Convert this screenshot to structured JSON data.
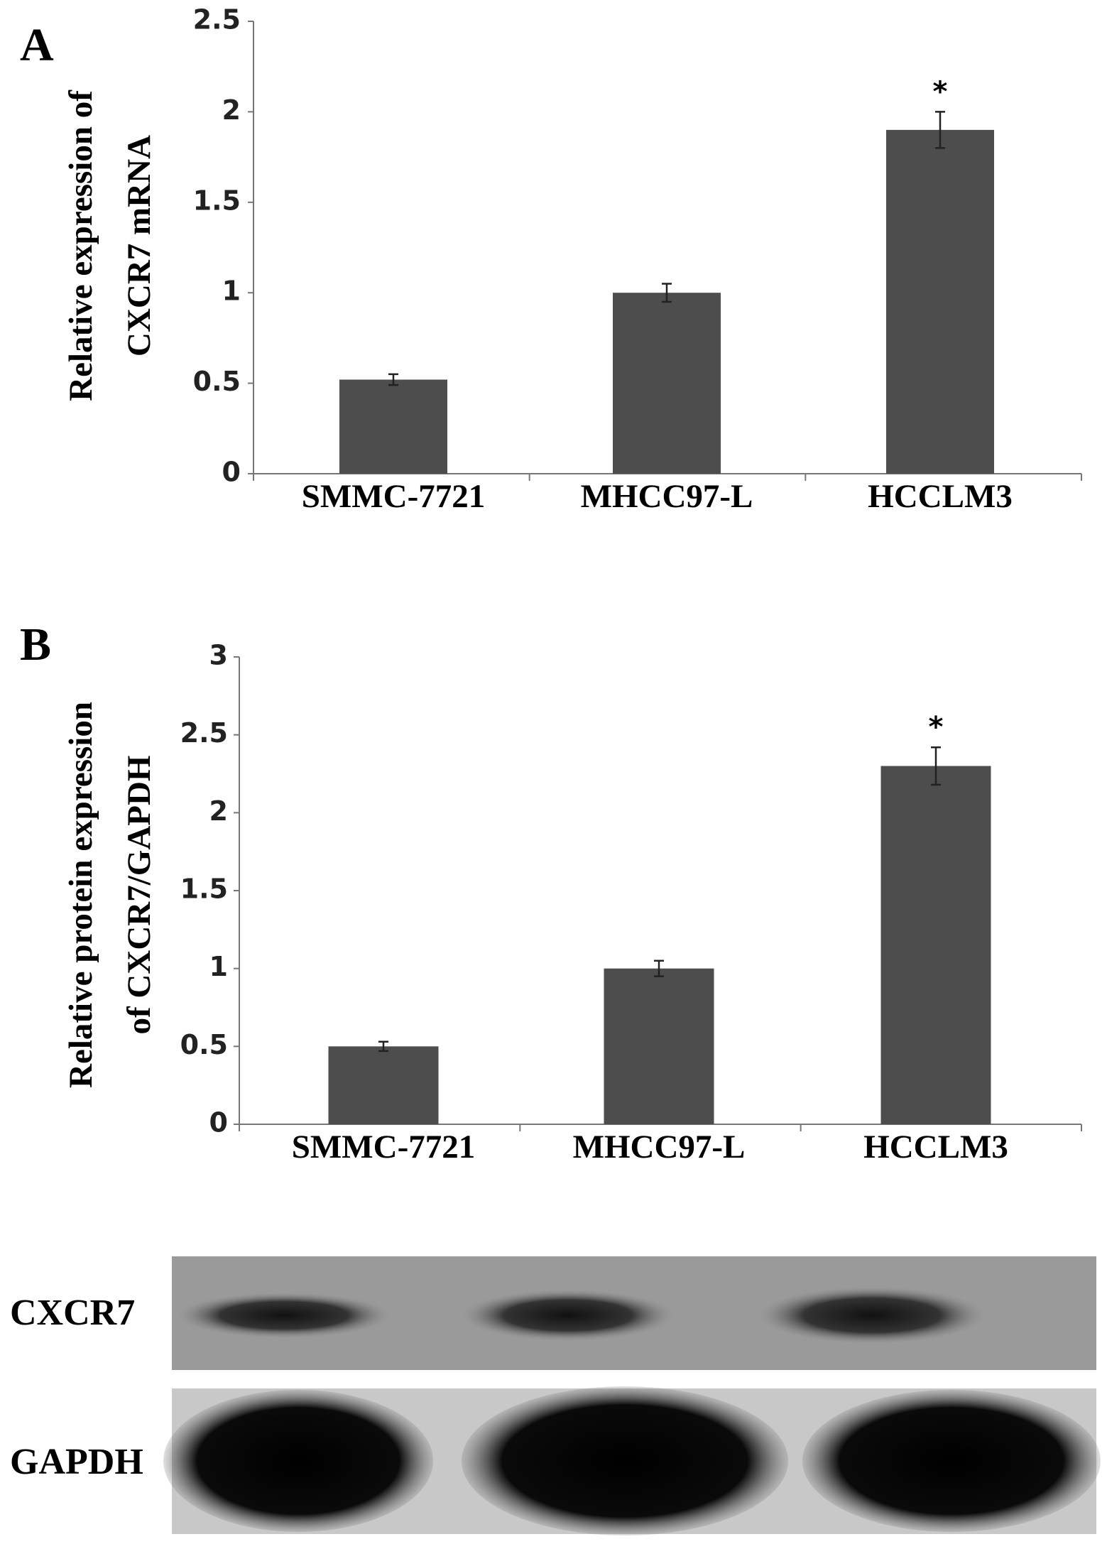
{
  "chart_data": [
    {
      "type": "bar",
      "panel": "A",
      "ylabel": [
        "Relative expression of",
        "CXCR7 mRNA"
      ],
      "categories": [
        "SMMC-7721",
        "MHCC97-L",
        "HCCLM3"
      ],
      "values": [
        0.52,
        1.0,
        1.9
      ],
      "errors": [
        0.03,
        0.05,
        0.1
      ],
      "significance_labels": [
        null,
        null,
        "*"
      ],
      "color": "#4d4d4d",
      "ylim": [
        0,
        2.5
      ],
      "yticks": [
        0,
        0.5,
        1,
        1.5,
        2,
        2.5
      ]
    },
    {
      "type": "bar",
      "panel": "B",
      "ylabel": [
        "Relative protein expression",
        "of CXCR7/GAPDH"
      ],
      "categories": [
        "SMMC-7721",
        "MHCC97-L",
        "HCCLM3"
      ],
      "values": [
        0.5,
        1.0,
        2.3
      ],
      "errors": [
        0.03,
        0.05,
        0.12
      ],
      "significance_labels": [
        null,
        null,
        "*"
      ],
      "color": "#4d4d4d",
      "ylim": [
        0,
        3
      ],
      "yticks": [
        0,
        0.5,
        1,
        1.5,
        2,
        2.5,
        3
      ]
    }
  ],
  "blot": {
    "labels": [
      "CXCR7",
      "GAPDH"
    ]
  }
}
